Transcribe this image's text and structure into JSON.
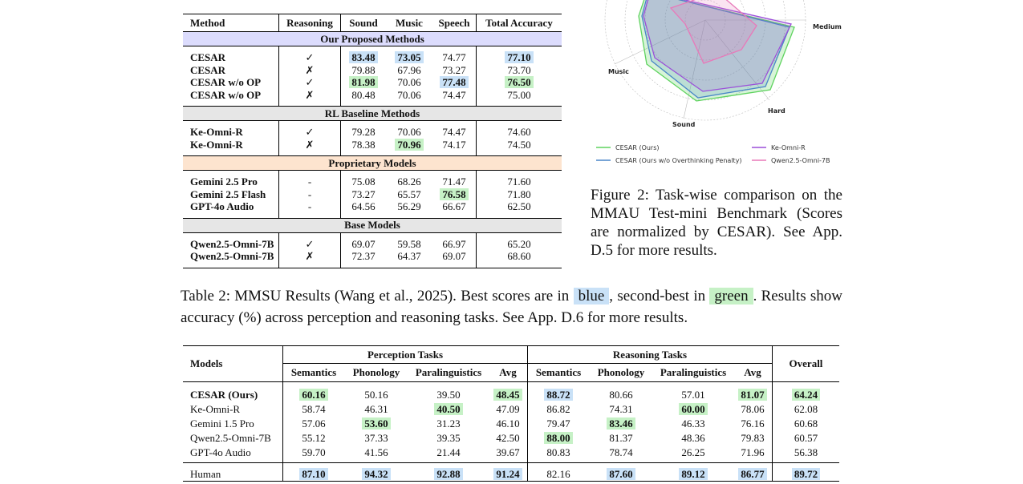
{
  "table1": {
    "headers": [
      "Method",
      "Reasoning",
      "Sound",
      "Music",
      "Speech",
      "Total Accuracy"
    ],
    "sections": [
      {
        "title": "Our Proposed Methods",
        "bg": "#dcdcfd",
        "rows": [
          {
            "name": "CESAR",
            "reasoning": "✓",
            "sound": "83.48",
            "sound_hl": "blue",
            "music": "73.05",
            "music_hl": "blue",
            "speech": "74.77",
            "speech_hl": "",
            "total": "77.10",
            "total_hl": "blue"
          },
          {
            "name": "CESAR",
            "reasoning": "✗",
            "sound": "79.88",
            "sound_hl": "",
            "music": "67.96",
            "music_hl": "",
            "speech": "73.27",
            "speech_hl": "",
            "total": "73.70",
            "total_hl": ""
          },
          {
            "name": "CESAR w/o OP",
            "reasoning": "✓",
            "sound": "81.98",
            "sound_hl": "green",
            "music": "70.06",
            "music_hl": "",
            "speech": "77.48",
            "speech_hl": "blue",
            "total": "76.50",
            "total_hl": "green"
          },
          {
            "name": "CESAR w/o OP",
            "reasoning": "✗",
            "sound": "80.48",
            "sound_hl": "",
            "music": "70.06",
            "music_hl": "",
            "speech": "74.47",
            "speech_hl": "",
            "total": "75.00",
            "total_hl": ""
          }
        ]
      },
      {
        "title": "RL Baseline Methods",
        "bg": "#e6e6e6",
        "rows": [
          {
            "name": "Ke-Omni-R",
            "reasoning": "✓",
            "sound": "79.28",
            "sound_hl": "",
            "music": "70.06",
            "music_hl": "",
            "speech": "74.47",
            "speech_hl": "",
            "total": "74.60",
            "total_hl": ""
          },
          {
            "name": "Ke-Omni-R",
            "reasoning": "✗",
            "sound": "78.38",
            "sound_hl": "",
            "music": "70.96",
            "music_hl": "green",
            "speech": "74.17",
            "speech_hl": "",
            "total": "74.50",
            "total_hl": ""
          }
        ]
      },
      {
        "title": "Proprietary Models",
        "bg": "#fde4cf",
        "rows": [
          {
            "name": "Gemini 2.5 Pro",
            "reasoning": "-",
            "sound": "75.08",
            "sound_hl": "",
            "music": "68.26",
            "music_hl": "",
            "speech": "71.47",
            "speech_hl": "",
            "total": "71.60",
            "total_hl": ""
          },
          {
            "name": "Gemini 2.5 Flash",
            "reasoning": "-",
            "sound": "73.27",
            "sound_hl": "",
            "music": "65.57",
            "music_hl": "",
            "speech": "76.58",
            "speech_hl": "green",
            "total": "71.80",
            "total_hl": ""
          },
          {
            "name": "GPT-4o Audio",
            "reasoning": "-",
            "sound": "64.56",
            "sound_hl": "",
            "music": "56.29",
            "music_hl": "",
            "speech": "66.67",
            "speech_hl": "",
            "total": "62.50",
            "total_hl": ""
          }
        ]
      },
      {
        "title": "Base Models",
        "bg": "#e6e6e6",
        "rows": [
          {
            "name": "Qwen2.5-Omni-7B",
            "reasoning": "✓",
            "sound": "69.07",
            "sound_hl": "",
            "music": "59.58",
            "music_hl": "",
            "speech": "66.97",
            "speech_hl": "",
            "total": "65.20",
            "total_hl": ""
          },
          {
            "name": "Qwen2.5-Omni-7B",
            "reasoning": "✗",
            "sound": "72.37",
            "sound_hl": "",
            "music": "64.37",
            "music_hl": "",
            "speech": "69.07",
            "speech_hl": "",
            "total": "68.60",
            "total_hl": ""
          }
        ]
      }
    ]
  },
  "radar": {
    "axis_labels": [
      "Medium",
      "Hard",
      "Sound",
      "Music"
    ],
    "legend": [
      "CESAR (Ours)",
      "CESAR (Ours w/o Overthinking Penalty)",
      "Ke-Omni-R",
      "Qwen2.5-Omni-7B"
    ],
    "colors": {
      "cesar": "#5fd35f",
      "cesar_wo": "#4a86c8",
      "ke": "#9b4fd9",
      "qwen": "#e879b9"
    }
  },
  "figure_caption": "Figure 2: Task-wise comparison on the MMAU Test-mini Benchmark (Scores are normalized by CESAR). See App. D.5 for more results.",
  "table_caption": {
    "part1": "Table 2: MMSU Results (Wang et al., 2025). Best scores are in ",
    "blue_word": "blue",
    "part2": ", second-best in ",
    "green_word": "green",
    "part3": ". Results show accuracy (%) across perception and reasoning tasks. See App. D.6 for more results."
  },
  "table2": {
    "col_models": "Models",
    "group_perception": "Perception Tasks",
    "group_reasoning": "Reasoning Tasks",
    "col_overall": "Overall",
    "subheaders": [
      "Semantics",
      "Phonology",
      "Paralinguistics",
      "Avg",
      "Semantics",
      "Phonology",
      "Paralinguistics",
      "Avg"
    ],
    "rows": [
      {
        "name": "CESAR (Ours)",
        "bold": true,
        "cells": [
          [
            "60.16",
            "green"
          ],
          [
            "50.16",
            ""
          ],
          [
            "39.50",
            ""
          ],
          [
            "48.45",
            "green"
          ],
          [
            "88.72",
            "blue"
          ],
          [
            "80.66",
            ""
          ],
          [
            "57.01",
            ""
          ],
          [
            "81.07",
            "green"
          ],
          [
            "64.24",
            "green"
          ]
        ]
      },
      {
        "name": "Ke-Omni-R",
        "bold": false,
        "cells": [
          [
            "58.74",
            ""
          ],
          [
            "46.31",
            ""
          ],
          [
            "40.50",
            "green"
          ],
          [
            "47.09",
            ""
          ],
          [
            "86.82",
            ""
          ],
          [
            "74.31",
            ""
          ],
          [
            "60.00",
            "green"
          ],
          [
            "78.06",
            ""
          ],
          [
            "62.08",
            ""
          ]
        ]
      },
      {
        "name": "Gemini 1.5 Pro",
        "bold": false,
        "cells": [
          [
            "57.06",
            ""
          ],
          [
            "53.60",
            "green"
          ],
          [
            "31.23",
            ""
          ],
          [
            "46.10",
            ""
          ],
          [
            "79.47",
            ""
          ],
          [
            "83.46",
            "green"
          ],
          [
            "46.33",
            ""
          ],
          [
            "76.16",
            ""
          ],
          [
            "60.68",
            ""
          ]
        ]
      },
      {
        "name": "Qwen2.5-Omni-7B",
        "bold": false,
        "cells": [
          [
            "55.12",
            ""
          ],
          [
            "37.33",
            ""
          ],
          [
            "39.35",
            ""
          ],
          [
            "42.50",
            ""
          ],
          [
            "88.00",
            "green"
          ],
          [
            "81.37",
            ""
          ],
          [
            "48.36",
            ""
          ],
          [
            "79.83",
            ""
          ],
          [
            "60.57",
            ""
          ]
        ]
      },
      {
        "name": "GPT-4o Audio",
        "bold": false,
        "cells": [
          [
            "59.70",
            ""
          ],
          [
            "41.56",
            ""
          ],
          [
            "21.44",
            ""
          ],
          [
            "39.67",
            ""
          ],
          [
            "80.83",
            ""
          ],
          [
            "78.74",
            ""
          ],
          [
            "26.25",
            ""
          ],
          [
            "71.96",
            ""
          ],
          [
            "56.38",
            ""
          ]
        ]
      }
    ],
    "human_row": {
      "name": "Human",
      "cells": [
        [
          "87.10",
          "blue"
        ],
        [
          "94.32",
          "blue"
        ],
        [
          "92.88",
          "blue"
        ],
        [
          "91.24",
          "blue"
        ],
        [
          "82.16",
          ""
        ],
        [
          "87.60",
          "blue"
        ],
        [
          "89.12",
          "blue"
        ],
        [
          "86.77",
          "blue"
        ],
        [
          "89.72",
          "blue"
        ]
      ]
    }
  }
}
